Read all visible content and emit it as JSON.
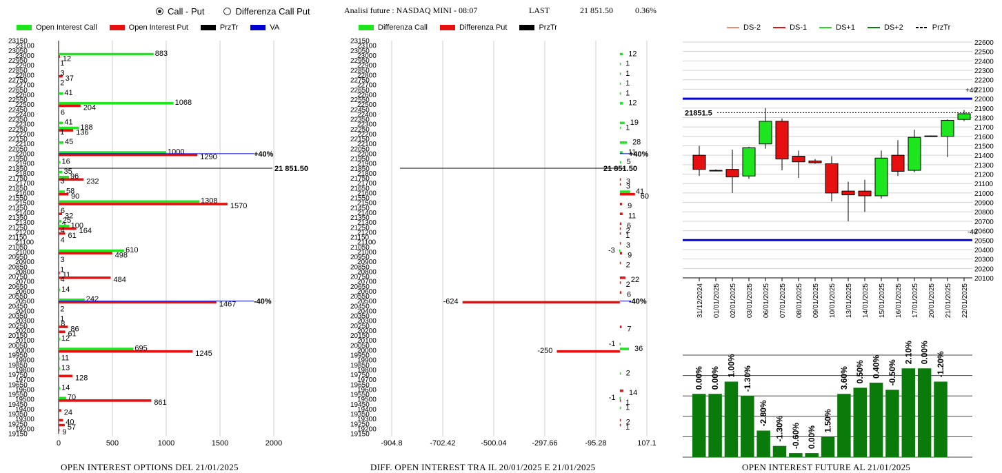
{
  "controls": {
    "radio_options": [
      "Call - Put",
      "Differenza Call Put"
    ],
    "selected": "Call - Put"
  },
  "header": {
    "title": "Analisi future : NASDAQ MINI - 08:07",
    "last_label": "LAST",
    "last_value": "21 851.50",
    "change": "0.36%"
  },
  "colors": {
    "green": "#1ee61e",
    "red": "#e61010",
    "black": "#000000",
    "blue": "#0000d0",
    "dark_green": "#0a7a0a",
    "ds_minus2": "#f08a6a",
    "ds_plus1": "#22dd22"
  },
  "chart_data": [
    {
      "id": "oi_options",
      "type": "bar",
      "orientation": "horizontal",
      "legend": [
        "Open Interest Call",
        "Open Interest Put",
        "PrzTr",
        "VA"
      ],
      "caption": "OPEN INTEREST OPTIONS DEL 21/01/2025",
      "strikes": [
        23150,
        23100,
        23050,
        23000,
        22950,
        22900,
        22850,
        22800,
        22750,
        22700,
        22650,
        22600,
        22550,
        22500,
        22450,
        22400,
        22350,
        22300,
        22250,
        22200,
        22150,
        22100,
        22050,
        22000,
        21950,
        21900,
        21850,
        21800,
        21750,
        21700,
        21650,
        21600,
        21550,
        21500,
        21450,
        21400,
        21350,
        21300,
        21250,
        21200,
        21150,
        21100,
        21050,
        21000,
        20950,
        20900,
        20850,
        20800,
        20750,
        20700,
        20650,
        20600,
        20550,
        20500,
        20450,
        20400,
        20350,
        20300,
        20250,
        20200,
        20150,
        20100,
        20050,
        20000,
        19950,
        19900,
        19850,
        19800,
        19750,
        19700,
        19650,
        19600,
        19550,
        19500,
        19450,
        19400,
        19350,
        19300,
        19250,
        19200,
        19150
      ],
      "rows": [
        {
          "strike": 23000,
          "call": 883,
          "put": 12
        },
        {
          "strike": 22900,
          "call": 1,
          "put": 0
        },
        {
          "strike": 22800,
          "call": 3,
          "put": 37
        },
        {
          "strike": 22700,
          "call": 2,
          "put": 0
        },
        {
          "strike": 22600,
          "call": 41,
          "put": 0
        },
        {
          "strike": 22500,
          "call": 1068,
          "put": 204
        },
        {
          "strike": 22400,
          "call": 6,
          "put": 0
        },
        {
          "strike": 22300,
          "call": 41,
          "put": 0
        },
        {
          "strike": 22250,
          "call": 188,
          "put": 136
        },
        {
          "strike": 22200,
          "call": 1,
          "put": 0
        },
        {
          "strike": 22100,
          "call": 45,
          "put": 0
        },
        {
          "strike": 22000,
          "call": 1000,
          "put": 1290
        },
        {
          "strike": 21900,
          "call": 16,
          "put": 0
        },
        {
          "strike": 21800,
          "call": 35,
          "put": 0
        },
        {
          "strike": 21750,
          "call": 96,
          "put": 232
        },
        {
          "strike": 21700,
          "call": 3,
          "put": 0
        },
        {
          "strike": 21600,
          "call": 58,
          "put": 90
        },
        {
          "strike": 21500,
          "call": 1308,
          "put": 1570
        },
        {
          "strike": 21400,
          "call": 6,
          "put": 32
        },
        {
          "strike": 21300,
          "call": 25,
          "put": 2
        },
        {
          "strike": 21250,
          "call": 100,
          "put": 164
        },
        {
          "strike": 21200,
          "call": 4,
          "put": 61
        },
        {
          "strike": 21100,
          "call": 4,
          "put": 0
        },
        {
          "strike": 21000,
          "call": 610,
          "put": 498
        },
        {
          "strike": 20900,
          "call": 3,
          "put": 0
        },
        {
          "strike": 20800,
          "call": 1,
          "put": 11
        },
        {
          "strike": 20750,
          "call": 0,
          "put": 484
        },
        {
          "strike": 20700,
          "call": 4,
          "put": 0
        },
        {
          "strike": 20600,
          "call": 14,
          "put": 0
        },
        {
          "strike": 20500,
          "call": 242,
          "put": 1467
        },
        {
          "strike": 20400,
          "call": 2,
          "put": 0
        },
        {
          "strike": 20300,
          "call": 1,
          "put": 0
        },
        {
          "strike": 20250,
          "call": 8,
          "put": 86
        },
        {
          "strike": 20200,
          "call": 0,
          "put": 61
        },
        {
          "strike": 20100,
          "call": 12,
          "put": 0
        },
        {
          "strike": 20000,
          "call": 695,
          "put": 1245
        },
        {
          "strike": 19900,
          "call": 11,
          "put": 0
        },
        {
          "strike": 19800,
          "call": 13,
          "put": 0
        },
        {
          "strike": 19750,
          "call": 0,
          "put": 128
        },
        {
          "strike": 19600,
          "call": 14,
          "put": 0
        },
        {
          "strike": 19500,
          "call": 70,
          "put": 861
        },
        {
          "strike": 19400,
          "call": 0,
          "put": 24
        },
        {
          "strike": 19300,
          "call": 0,
          "put": 40
        },
        {
          "strike": 19250,
          "call": 0,
          "put": 57
        },
        {
          "strike": 19200,
          "call": 0,
          "put": 9
        }
      ],
      "xlim": [
        0,
        2000
      ],
      "xticks": [
        0,
        500,
        1000,
        1500,
        2000
      ],
      "price_line": {
        "strike": 21851.5,
        "label": "21 851.50"
      },
      "va_lines": [
        {
          "strike": 22000,
          "label": "+40%"
        },
        {
          "strike": 20500,
          "label": "-40%"
        }
      ]
    },
    {
      "id": "diff_oi",
      "type": "bar",
      "orientation": "horizontal",
      "legend": [
        "Differenza Call",
        "Differenza Put",
        "PrzTr"
      ],
      "caption": "DIFF. OPEN INTEREST TRA IL 20/01/2025 E 21/01/2025",
      "rows": [
        {
          "strike": 23000,
          "call": 12,
          "put": 0
        },
        {
          "strike": 22900,
          "call": 1,
          "put": 0
        },
        {
          "strike": 22800,
          "call": 1,
          "put": 0
        },
        {
          "strike": 22700,
          "call": 1,
          "put": 0
        },
        {
          "strike": 22600,
          "call": 1,
          "put": 0
        },
        {
          "strike": 22500,
          "call": 12,
          "put": 0
        },
        {
          "strike": 22300,
          "call": 19,
          "put": 0
        },
        {
          "strike": 22250,
          "call": 1,
          "put": 0
        },
        {
          "strike": 22100,
          "call": 28,
          "put": 0
        },
        {
          "strike": 22000,
          "call": 11,
          "put": 0
        },
        {
          "strike": 21900,
          "call": 5,
          "put": 0
        },
        {
          "strike": 21800,
          "call": 0,
          "put": 0
        },
        {
          "strike": 21750,
          "call": 0,
          "put": 3
        },
        {
          "strike": 21700,
          "call": 0,
          "put": 3
        },
        {
          "strike": 21600,
          "call": 41,
          "put": 60
        },
        {
          "strike": 21500,
          "call": 0,
          "put": 9
        },
        {
          "strike": 21400,
          "call": 0,
          "put": 11
        },
        {
          "strike": 21300,
          "call": 0,
          "put": 6
        },
        {
          "strike": 21250,
          "call": 0,
          "put": 2
        },
        {
          "strike": 21200,
          "call": 0,
          "put": 1
        },
        {
          "strike": 21100,
          "call": 0,
          "put": 3
        },
        {
          "strike": 21000,
          "call": -3,
          "put": 9
        },
        {
          "strike": 20900,
          "call": 0,
          "put": 2
        },
        {
          "strike": 20750,
          "call": 0,
          "put": 22
        },
        {
          "strike": 20700,
          "call": 0,
          "put": 2
        },
        {
          "strike": 20600,
          "call": 0,
          "put": 6
        },
        {
          "strike": 20500,
          "call": 0,
          "put": -624
        },
        {
          "strike": 20250,
          "call": 0,
          "put": 7
        },
        {
          "strike": 20050,
          "call": -1,
          "put": 0
        },
        {
          "strike": 20000,
          "call": 36,
          "put": -250
        },
        {
          "strike": 19750,
          "call": 2,
          "put": 0
        },
        {
          "strike": 19600,
          "call": 0,
          "put": 14
        },
        {
          "strike": 19500,
          "call": -1,
          "put": 1
        },
        {
          "strike": 19400,
          "call": 1,
          "put": 0
        },
        {
          "strike": 19300,
          "call": 0,
          "put": 2
        },
        {
          "strike": 19250,
          "call": 0,
          "put": 1
        }
      ],
      "xlim": [
        -904.8,
        107.1
      ],
      "xticks": [
        -904.8,
        -702.42,
        -500.04,
        -297.66,
        -95.28,
        107.1
      ],
      "price_line": {
        "strike": 21851.5,
        "label": "21 851.50"
      },
      "va_lines": [
        {
          "strike": 22000,
          "label": "+40%"
        },
        {
          "strike": 20500,
          "label": "-40%"
        }
      ]
    },
    {
      "id": "candles",
      "type": "candlestick",
      "legend": [
        "DS-2",
        "DS-1",
        "DS+1",
        "DS+2",
        "PrzTr"
      ],
      "ylim": [
        20100,
        22600
      ],
      "yticks": [
        20100,
        20200,
        20300,
        20400,
        20500,
        20600,
        20700,
        20800,
        20900,
        21000,
        21100,
        21200,
        21300,
        21400,
        21500,
        21600,
        21700,
        21800,
        21900,
        22000,
        22100,
        22200,
        22300,
        22400,
        22500,
        22600
      ],
      "last_label": "21851.5",
      "last_value": 21851.5,
      "upper_band": {
        "value": 22000,
        "label": "+40"
      },
      "lower_band": {
        "value": 20500,
        "label": "-40"
      },
      "candles": [
        {
          "date": "31/12/2024",
          "open": 21400,
          "high": 21500,
          "low": 21180,
          "close": 21250
        },
        {
          "date": "01/01/2025",
          "open": 21240,
          "high": 21250,
          "low": 21230,
          "close": 21240
        },
        {
          "date": "02/01/2025",
          "open": 21250,
          "high": 21460,
          "low": 21000,
          "close": 21170
        },
        {
          "date": "03/01/2025",
          "open": 21180,
          "high": 21490,
          "low": 21150,
          "close": 21480
        },
        {
          "date": "06/01/2025",
          "open": 21520,
          "high": 21900,
          "low": 21470,
          "close": 21760
        },
        {
          "date": "07/01/2025",
          "open": 21760,
          "high": 21790,
          "low": 21240,
          "close": 21360
        },
        {
          "date": "08/01/2025",
          "open": 21390,
          "high": 21450,
          "low": 21160,
          "close": 21330
        },
        {
          "date": "09/01/2025",
          "open": 21340,
          "high": 21360,
          "low": 21310,
          "close": 21320
        },
        {
          "date": "10/01/2025",
          "open": 21310,
          "high": 21390,
          "low": 20910,
          "close": 21000
        },
        {
          "date": "13/01/2025",
          "open": 21020,
          "high": 21120,
          "low": 20700,
          "close": 20980
        },
        {
          "date": "14/01/2025",
          "open": 21020,
          "high": 21140,
          "low": 20800,
          "close": 20970
        },
        {
          "date": "15/01/2025",
          "open": 20970,
          "high": 21450,
          "low": 20940,
          "close": 21370
        },
        {
          "date": "16/01/2025",
          "open": 21400,
          "high": 21560,
          "low": 21180,
          "close": 21230
        },
        {
          "date": "17/01/2025",
          "open": 21240,
          "high": 21670,
          "low": 21220,
          "close": 21590
        },
        {
          "date": "20/01/2025",
          "open": 21600,
          "high": 21610,
          "low": 21600,
          "close": 21605
        },
        {
          "date": "21/01/2025",
          "open": 21600,
          "high": 21780,
          "low": 21380,
          "close": 21770
        },
        {
          "date": "22/01/2025",
          "open": 21780,
          "high": 21880,
          "low": 21760,
          "close": 21840
        }
      ]
    },
    {
      "id": "oi_future",
      "type": "bar",
      "caption": "OPEN INTEREST FUTURE AL 21/01/2025",
      "ylim": [
        0,
        100
      ],
      "values": [
        62,
        62,
        74,
        60,
        26,
        11,
        4,
        4,
        20,
        62,
        68,
        73,
        66,
        87,
        87,
        74
      ],
      "labels": [
        "0.00%",
        "0.00%",
        "1.00%",
        "-1.30%",
        "-2.80%",
        "-1.30%",
        "-0.60%",
        "0.00%",
        "1.50%",
        "3.60%",
        "0.50%",
        "0.40%",
        "-0.50%",
        "2.10%",
        "0.00%",
        "-1.20%"
      ]
    }
  ]
}
